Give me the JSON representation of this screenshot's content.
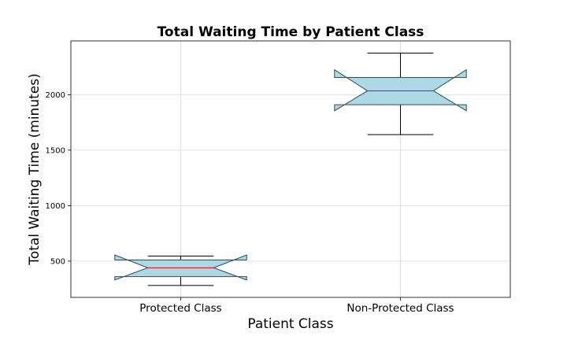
{
  "chart_data": {
    "type": "box",
    "title": "Total Waiting Time by Patient Class",
    "xlabel": "Patient Class",
    "ylabel": "Total Waiting Time (minutes)",
    "categories": [
      "Protected Class",
      "Non-Protected Class"
    ],
    "yticks": [
      500,
      1000,
      1500,
      2000
    ],
    "ylim": [
      173,
      2485
    ],
    "grid": true,
    "notched": true,
    "colors": {
      "box_fill": "#add8e6",
      "box_edge": "#2f4f4f",
      "median": "#ff0000",
      "whisker": "#000000",
      "grid": "#d9d9d9"
    },
    "boxes": [
      {
        "category": "Protected Class",
        "whisker_low": 280,
        "q1": 360,
        "median": 440,
        "q3": 510,
        "whisker_high": 545,
        "notch_low": 330,
        "notch_high": 555
      },
      {
        "category": "Non-Protected Class",
        "whisker_low": 1640,
        "q1": 1910,
        "median": 2035,
        "q3": 2155,
        "whisker_high": 2375,
        "notch_low": 1855,
        "notch_high": 2225
      }
    ]
  }
}
